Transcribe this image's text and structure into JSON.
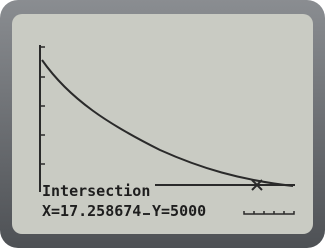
{
  "screen": {
    "label": "Intersection",
    "x_readout": "X=17.258674",
    "y_readout": "Y=5000"
  }
}
